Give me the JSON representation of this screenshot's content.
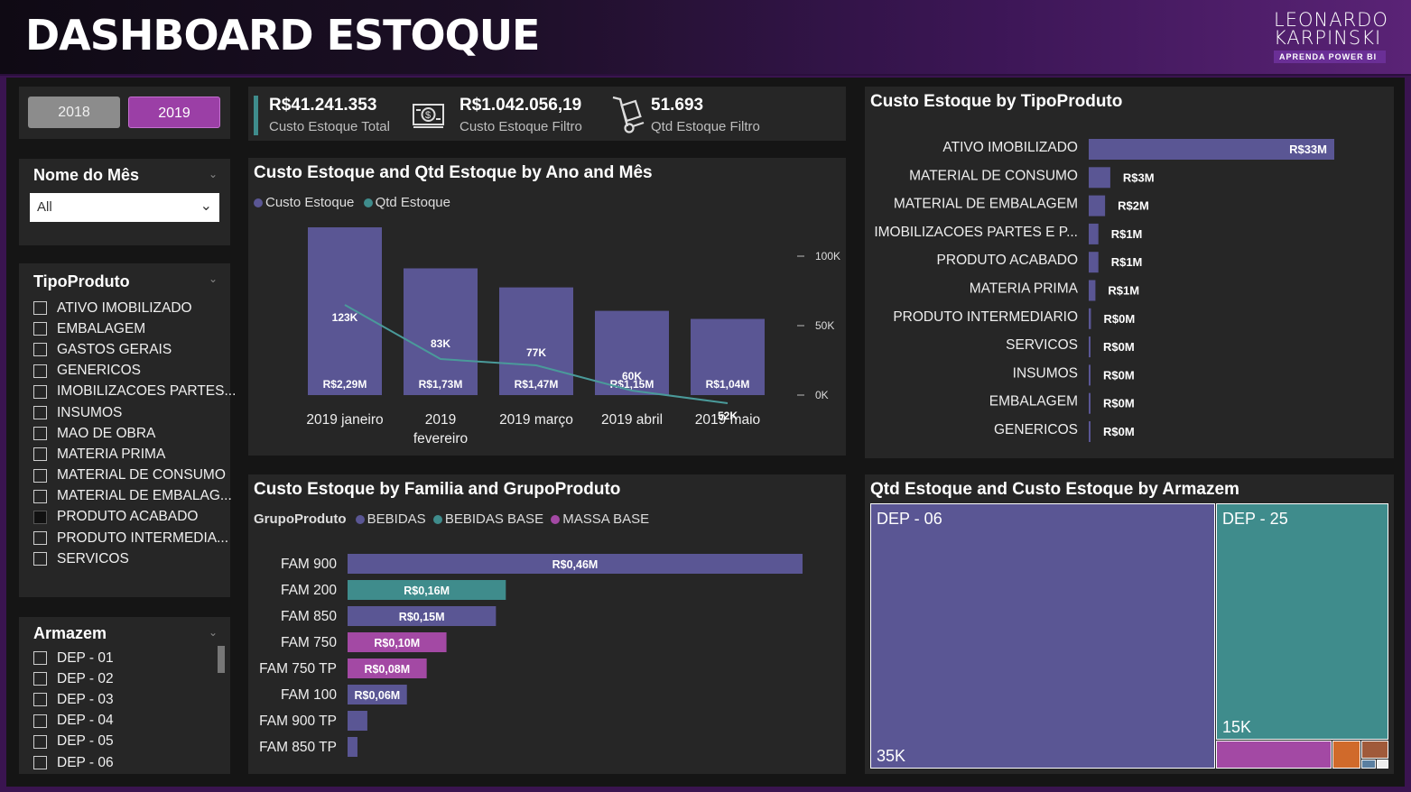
{
  "header": {
    "title": "DASHBOARD ESTOQUE",
    "logo_line1": "LEONARDO",
    "logo_line2": "KARPINSKI",
    "logo_tag": "APRENDA POWER BI"
  },
  "year_buttons": [
    "2018",
    "2019"
  ],
  "month_slicer": {
    "title": "Nome do Mês",
    "value": "All"
  },
  "tipo_slicer": {
    "title": "TipoProduto",
    "items": [
      "ATIVO IMOBILIZADO",
      "EMBALAGEM",
      "GASTOS GERAIS",
      "GENERICOS",
      "IMOBILIZACOES PARTES...",
      "INSUMOS",
      "MAO DE OBRA",
      "MATERIA PRIMA",
      "MATERIAL DE CONSUMO",
      "MATERIAL DE EMBALAG...",
      "PRODUTO ACABADO",
      "PRODUTO INTERMEDIA...",
      "SERVICOS"
    ]
  },
  "armazem_slicer": {
    "title": "Armazem",
    "items": [
      "DEP - 01",
      "DEP - 02",
      "DEP - 03",
      "DEP - 04",
      "DEP - 05",
      "DEP - 06"
    ]
  },
  "kpis": [
    {
      "value": "R$41.241.353",
      "label": "Custo Estoque Total",
      "icon": "money-icon"
    },
    {
      "value": "R$1.042.056,19",
      "label": "Custo Estoque Filtro",
      "icon": "money-stack-icon"
    },
    {
      "value": "51.693",
      "label": "Qtd Estoque Filtro",
      "icon": "hand-truck-icon"
    }
  ],
  "colors": {
    "purple_bar": "#5a5694",
    "teal": "#3f8c8c",
    "magenta": "#a349a4",
    "orange": "#d06a2b",
    "brown": "#a05a3a"
  },
  "chart_data": [
    {
      "type": "bar",
      "title": "Custo Estoque and Qtd Estoque by Ano and Mês",
      "categories": [
        "2019 janeiro",
        "2019 fevereiro",
        "2019 março",
        "2019 abril",
        "2019 maio"
      ],
      "series": [
        {
          "name": "Custo Estoque",
          "values": [
            2.29,
            1.73,
            1.47,
            1.15,
            1.04
          ],
          "labels": [
            "R$2,29M",
            "R$1,73M",
            "R$1,47M",
            "R$1,15M",
            "R$1,04M"
          ],
          "chart": "bar"
        },
        {
          "name": "Qtd Estoque",
          "values": [
            123000,
            83000,
            77000,
            60000,
            52000
          ],
          "labels": [
            "123K",
            "83K",
            "77K",
            "60K",
            "52K"
          ],
          "chart": "line"
        }
      ],
      "secondary_axis": {
        "ticks": [
          "100K",
          "50K",
          "0K"
        ],
        "ylim": [
          0,
          100000
        ]
      }
    },
    {
      "type": "bar",
      "title": "Custo Estoque by TipoProduto",
      "categories": [
        "ATIVO IMOBILIZADO",
        "MATERIAL DE CONSUMO",
        "MATERIAL DE EMBALAGEM",
        "IMOBILIZACOES PARTES E P...",
        "PRODUTO ACABADO",
        "MATERIA PRIMA",
        "PRODUTO INTERMEDIARIO",
        "SERVICOS",
        "INSUMOS",
        "EMBALAGEM",
        "GENERICOS"
      ],
      "values": [
        33,
        2.9,
        2.2,
        1.3,
        1.3,
        0.9,
        0.3,
        0.15,
        0.1,
        0.08,
        0.05
      ],
      "labels": [
        "R$33M",
        "R$3M",
        "R$2M",
        "R$1M",
        "R$1M",
        "R$1M",
        "R$0M",
        "R$0M",
        "R$0M",
        "R$0M",
        "R$0M"
      ]
    },
    {
      "type": "bar",
      "title": "Custo Estoque by Familia and GrupoProduto",
      "legend_title": "GrupoProduto",
      "legend": [
        {
          "name": "BEBIDAS",
          "color": "#5a5694"
        },
        {
          "name": "BEBIDAS BASE",
          "color": "#3f8c8c"
        },
        {
          "name": "MASSA BASE",
          "color": "#a349a4"
        }
      ],
      "categories": [
        "FAM 900",
        "FAM 200",
        "FAM 850",
        "FAM 750",
        "FAM 750 TP",
        "FAM 100",
        "FAM 900 TP",
        "FAM 850 TP"
      ],
      "values": [
        0.46,
        0.16,
        0.15,
        0.1,
        0.08,
        0.06,
        0.02,
        0.01
      ],
      "groups": [
        "BEBIDAS",
        "BEBIDAS BASE",
        "BEBIDAS",
        "MASSA BASE",
        "MASSA BASE",
        "BEBIDAS",
        "BEBIDAS",
        "BEBIDAS"
      ],
      "labels": [
        "R$0,46M",
        "R$0,16M",
        "R$0,15M",
        "R$0,10M",
        "R$0,08M",
        "R$0,06M",
        "",
        ""
      ]
    }
  ],
  "treemap": {
    "title": "Qtd Estoque and Custo Estoque by Armazem",
    "tiles": [
      {
        "name": "DEP - 06",
        "value_label": "35K",
        "color": "#5a5694"
      },
      {
        "name": "DEP - 25",
        "value_label": "15K",
        "color": "#3f8c8c"
      }
    ]
  }
}
